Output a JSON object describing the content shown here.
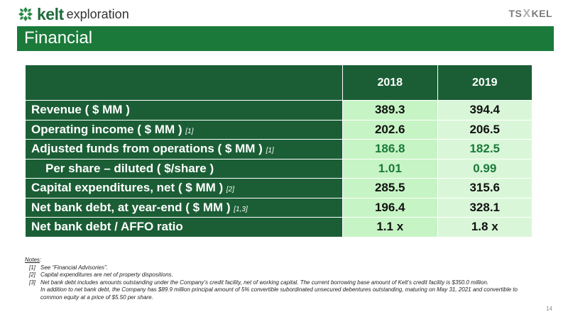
{
  "brand": {
    "name_bold": "kelt",
    "name_rest": "exploration",
    "ticker_left": "TS",
    "ticker_mid": "X",
    "ticker_right": "KEL"
  },
  "slide_title": "Financial",
  "table": {
    "headers": [
      "2018",
      "2019"
    ],
    "rows": [
      {
        "label": "Revenue ( $ MM )",
        "note": "",
        "v2018": "389.3",
        "v2019": "394.4"
      },
      {
        "label": "Operating income ( $ MM )",
        "note": "[1]",
        "v2018": "202.6",
        "v2019": "206.5"
      },
      {
        "label": "Adjusted funds from operations ( $ MM )",
        "note": "[1]",
        "v2018": "186.8",
        "v2019": "182.5"
      },
      {
        "label": "Per share – diluted ( $/share )",
        "note": "",
        "v2018": "1.01",
        "v2019": "0.99"
      },
      {
        "label": "Capital expenditures, net ( $ MM )",
        "note": "[2]",
        "v2018": "285.5",
        "v2019": "315.6"
      },
      {
        "label": "Net bank debt, at year-end ( $ MM )",
        "note": "[1,3]",
        "v2018": "196.4",
        "v2019": "328.1"
      },
      {
        "label": "Net bank debt / AFFO ratio",
        "note": "",
        "v2018": "1.1 x",
        "v2019": "1.8 x"
      }
    ],
    "highlight_color": "#1b7a3a"
  },
  "notes": {
    "heading": "Notes",
    "items": [
      {
        "num": "[1]",
        "text": "See “Financial Advisories”."
      },
      {
        "num": "[2]",
        "text": "Capital expenditures are net of property dispositions."
      },
      {
        "num": "[3]",
        "text": "Net bank debt includes amounts outstanding under the Company’s credit facility, net of working capital. The current borrowing base amount of Kelt’s credit facility is $350.0 million."
      }
    ],
    "continuation": "In addition to net bank debt, the Company has $89.9 million principal amount of 5% convertible subordinated unsecured debentures outstanding, maturing on May 31, 2021 and convertible to common equity at a price of $5.50 per share."
  },
  "page_number": "14",
  "colors": {
    "title_bar": "#1b7a3a",
    "header_dark": "#1b5e35",
    "cell_2018": "#c7f4c5",
    "cell_2019": "#d9f7d8"
  }
}
